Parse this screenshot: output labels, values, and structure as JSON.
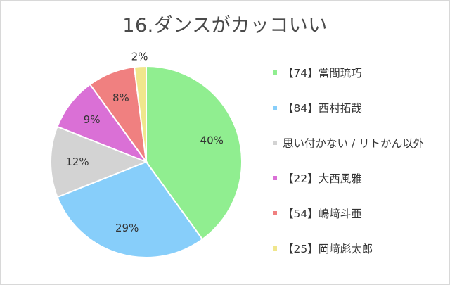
{
  "chart_data": {
    "type": "pie",
    "title": "16.ダンスがカッコいい",
    "legend_position": "right",
    "slices": [
      {
        "label": "【74】當間琉巧",
        "value": 40,
        "value_label": "40%",
        "color": "#90ee90"
      },
      {
        "label": "【84】西村拓哉",
        "value": 29,
        "value_label": "29%",
        "color": "#87cefa"
      },
      {
        "label": "思い付かない / リトかん以外",
        "value": 12,
        "value_label": "12%",
        "color": "#d3d3d3"
      },
      {
        "label": "【22】大西風雅",
        "value": 9,
        "value_label": "9%",
        "color": "#da70d6"
      },
      {
        "label": "【54】嶋﨑斗亜",
        "value": 8,
        "value_label": "8%",
        "color": "#f08080"
      },
      {
        "label": "【25】岡﨑彪太郎",
        "value": 2,
        "value_label": "2%",
        "color": "#f0e68c"
      }
    ]
  }
}
